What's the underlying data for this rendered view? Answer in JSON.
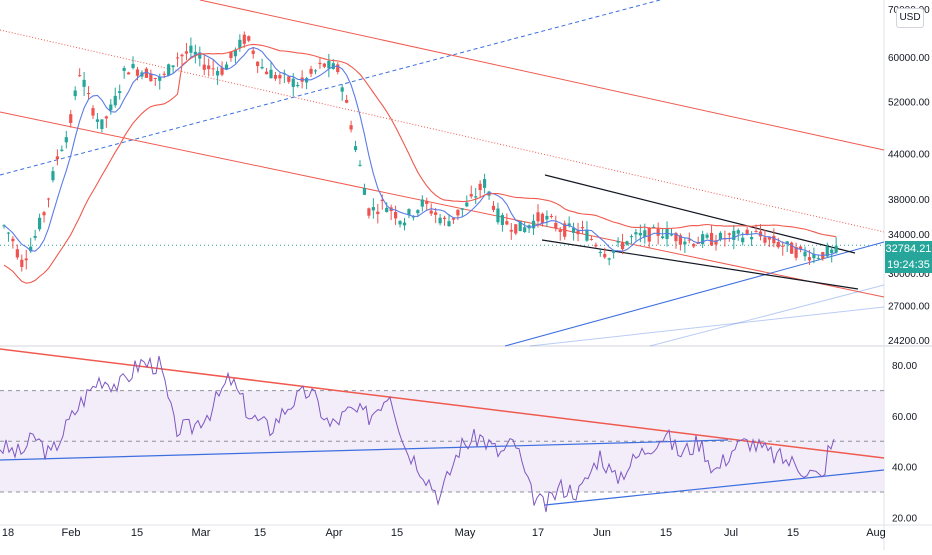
{
  "currency_button": "USD",
  "price_badge": {
    "price": "32784.21",
    "countdown": "19:24:35"
  },
  "chart_data": [
    {
      "type": "candlestick",
      "title": "",
      "y_scale": "log",
      "y_ticks": [
        "70000.00",
        "60000.00",
        "52000.00",
        "44000.00",
        "38000.00",
        "34000.00",
        "30000.00",
        "27000.00",
        "24200.00"
      ],
      "ylim": [
        23800,
        72000
      ],
      "x_ticks": [
        "18",
        "Feb",
        "15",
        "Mar",
        "15",
        "Apr",
        "15",
        "May",
        "17",
        "Jun",
        "15",
        "Jul",
        "15",
        "Aug"
      ],
      "colors": {
        "up": "#26a69a",
        "down": "#ef5350",
        "ma_fast": "#5b7ce6",
        "ma_slow": "#f05a4f",
        "trendline_red": "#f05a4f",
        "trendline_blue": "#3d6fe0",
        "trendline_black": "#131722"
      },
      "last_price": 32784.21
    },
    {
      "type": "line",
      "title": "",
      "y_ticks": [
        "80.00",
        "60.00",
        "40.00",
        "20.00"
      ],
      "ylim": [
        17,
        86
      ],
      "band": [
        30,
        70
      ],
      "midline": 50,
      "colors": {
        "rsi": "#7e57c2",
        "band_fill": "#ede7f6",
        "trendline_red": "#f05a4f",
        "trendline_blue": "#3d6fe0"
      }
    }
  ]
}
